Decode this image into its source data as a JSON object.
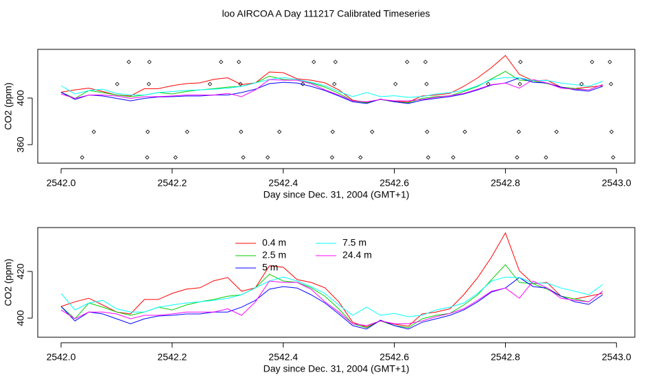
{
  "chart_data": [
    {
      "type": "line",
      "title": "loo AIRCOA A  Day 111217  Calibrated Timeseries",
      "xlabel": "Day since Dec. 31, 2004 (GMT+1)",
      "ylabel": "CO2 (ppm)",
      "xlim": [
        2541.958,
        2543.033
      ],
      "ylim": [
        344.1,
        441.8
      ],
      "xticks": [
        {
          "value": 2542,
          "label": "2542.0"
        },
        2542.2,
        2542.4,
        2542.6,
        2542.8,
        {
          "value": 2543,
          "label": "2543.0"
        }
      ],
      "yticks": [
        360,
        400
      ],
      "x": [
        2542.0,
        2542.025,
        2542.05,
        2542.075,
        2542.1,
        2542.125,
        2542.15,
        2542.175,
        2542.2,
        2542.225,
        2542.25,
        2542.275,
        2542.3,
        2542.325,
        2542.35,
        2542.375,
        2542.4,
        2542.425,
        2542.45,
        2542.475,
        2542.5,
        2542.525,
        2542.55,
        2542.575,
        2542.6,
        2542.625,
        2542.65,
        2542.675,
        2542.7,
        2542.725,
        2542.75,
        2542.775,
        2542.8,
        2542.825,
        2542.85,
        2542.875,
        2542.9,
        2542.925,
        2542.95,
        2542.975
      ],
      "series": [
        {
          "color": "#ff0000",
          "values": [
            405,
            407,
            408.5,
            405.6,
            402.6,
            401.8,
            408,
            408,
            410.6,
            412.4,
            413,
            416,
            417.4,
            411.5,
            413,
            422.4,
            421.8,
            416.5,
            415.3,
            413,
            407,
            398.2,
            396.2,
            398.8,
            397.4,
            396.5,
            401.8,
            402.6,
            404,
            410,
            417.4,
            426.2,
            436.5,
            420.3,
            414.7,
            415.3,
            409.4,
            408.2,
            409.4,
            410.6
          ]
        },
        {
          "color": "#00cd00",
          "values": [
            405,
            399.7,
            406.5,
            404.7,
            402.6,
            401.2,
            402.6,
            404.7,
            403.5,
            405.6,
            407,
            408,
            409.4,
            410,
            413,
            418.8,
            415.9,
            415.3,
            413,
            409.4,
            404,
            397.6,
            395.9,
            398.8,
            396.8,
            395.9,
            399.7,
            401.2,
            402,
            405.6,
            410,
            416.5,
            422.9,
            415.3,
            414.7,
            412.4,
            409.4,
            408.2,
            407,
            411.5
          ]
        },
        {
          "color": "#0000ff",
          "values": [
            405,
            398.8,
            402.6,
            401.8,
            399.7,
            397.6,
            399.7,
            400.9,
            401.2,
            401.8,
            401.8,
            402.6,
            402.6,
            404.7,
            407.6,
            412.4,
            413.5,
            412.9,
            410,
            406.5,
            401.8,
            396.8,
            395.3,
            399.1,
            396.8,
            395.3,
            398.2,
            399.7,
            401.2,
            403.5,
            407,
            411.2,
            412.9,
            417.4,
            413.5,
            412.9,
            409.4,
            407,
            405.9,
            410
          ]
        },
        {
          "color": "#00ffff",
          "values": [
            410.6,
            403.5,
            406.5,
            407.6,
            404,
            402.6,
            402.6,
            404.7,
            405.6,
            406.5,
            407,
            407.6,
            408.5,
            410,
            413,
            415.9,
            417.6,
            415.9,
            413.5,
            410.6,
            405.6,
            401.2,
            404.7,
            401.2,
            402,
            400.6,
            401.2,
            403.5,
            404.7,
            406.5,
            410.6,
            415.9,
            417.6,
            417.4,
            415,
            415,
            412.9,
            411.5,
            410,
            414.4
          ]
        },
        {
          "color": "#ff00ff",
          "values": [
            403.5,
            399.7,
            402.6,
            402.6,
            401.8,
            399.7,
            401.2,
            401.2,
            401.8,
            402.6,
            402.6,
            402.6,
            404,
            401.2,
            407,
            415.9,
            415.3,
            415.3,
            412.4,
            407,
            402.6,
            397.6,
            396.8,
            398.8,
            397.6,
            397.6,
            398.8,
            400.6,
            402,
            404,
            407.6,
            411.5,
            412.9,
            408.5,
            415.9,
            412.9,
            408.5,
            407.6,
            407,
            411.5
          ]
        }
      ],
      "markers": {
        "x": [
          2542.122,
          2542.159,
          2542.288,
          2542.32,
          2542.455,
          2542.494,
          2542.623,
          2542.656,
          2542.827,
          2542.956,
          2542.988,
          2542.101,
          2542.158,
          2542.268,
          2542.323,
          2542.435,
          2542.492,
          2542.602,
          2542.658,
          2542.769,
          2542.826,
          2542.937,
          2542.99,
          2542.059,
          2542.156,
          2542.227,
          2542.324,
          2542.393,
          2542.489,
          2542.56,
          2542.659,
          2542.727,
          2542.824,
          2542.892,
          2542.991,
          2542.038,
          2542.155,
          2542.206,
          2542.328,
          2542.372,
          2542.488,
          2542.539,
          2542.661,
          2542.706,
          2542.821,
          2542.873,
          2542.994
        ],
        "y": [
          431,
          431,
          431,
          431,
          431,
          431,
          431,
          431,
          431,
          431,
          431,
          412,
          412,
          412,
          412,
          412,
          412,
          412,
          412,
          412,
          412,
          412,
          412,
          371,
          371,
          371,
          371,
          371,
          371,
          371,
          371,
          371,
          371,
          371,
          371,
          349,
          349,
          349,
          349,
          349,
          349,
          349,
          349,
          349,
          349,
          349,
          349
        ]
      }
    },
    {
      "type": "line",
      "xlabel": "Day since Dec. 31, 2004 (GMT+1)",
      "ylabel": "CO2 (ppm)",
      "xlim": [
        2541.958,
        2543.033
      ],
      "ylim": [
        391.8,
        438.8
      ],
      "xticks": [
        {
          "value": 2542,
          "label": "2542.0"
        },
        2542.2,
        2542.4,
        2542.6,
        2542.8,
        {
          "value": 2543,
          "label": "2543.0"
        }
      ],
      "yticks": [
        400,
        420
      ],
      "legend": "top",
      "x": [
        2542.0,
        2542.025,
        2542.05,
        2542.075,
        2542.1,
        2542.125,
        2542.15,
        2542.175,
        2542.2,
        2542.225,
        2542.25,
        2542.275,
        2542.3,
        2542.325,
        2542.35,
        2542.375,
        2542.4,
        2542.425,
        2542.45,
        2542.475,
        2542.5,
        2542.525,
        2542.55,
        2542.575,
        2542.6,
        2542.625,
        2542.65,
        2542.675,
        2542.7,
        2542.725,
        2542.75,
        2542.775,
        2542.8,
        2542.825,
        2542.85,
        2542.875,
        2542.9,
        2542.925,
        2542.95,
        2542.975
      ],
      "series": [
        {
          "name": "0.4 m",
          "color": "#ff0000",
          "values": [
            405,
            407,
            408.5,
            405.6,
            402.6,
            401.8,
            408,
            408,
            410.6,
            412.4,
            413,
            416,
            417.4,
            411.5,
            413,
            422.4,
            421.8,
            416.5,
            415.3,
            413,
            407,
            398.2,
            396.2,
            398.8,
            397.4,
            396.5,
            401.8,
            402.6,
            404,
            410,
            417.4,
            426.2,
            436.5,
            420.3,
            414.7,
            415.3,
            409.4,
            408.2,
            409.4,
            410.6
          ]
        },
        {
          "name": "2.5 m",
          "color": "#00cd00",
          "values": [
            405,
            399.7,
            406.5,
            404.7,
            402.6,
            401.2,
            402.6,
            404.7,
            403.5,
            405.6,
            407,
            408,
            409.4,
            410,
            413,
            418.8,
            415.9,
            415.3,
            413,
            409.4,
            404,
            397.6,
            395.9,
            398.8,
            396.8,
            395.9,
            399.7,
            401.2,
            402,
            405.6,
            410,
            416.5,
            422.9,
            415.3,
            414.7,
            412.4,
            409.4,
            408.2,
            407,
            411.5
          ]
        },
        {
          "name": "5 m",
          "color": "#0000ff",
          "values": [
            405,
            398.8,
            402.6,
            401.8,
            399.7,
            397.6,
            399.7,
            400.9,
            401.2,
            401.8,
            401.8,
            402.6,
            402.6,
            404.7,
            407.6,
            412.4,
            413.5,
            412.9,
            410,
            406.5,
            401.8,
            396.8,
            395.3,
            399.1,
            396.8,
            395.3,
            398.2,
            399.7,
            401.2,
            403.5,
            407,
            411.2,
            412.9,
            417.4,
            413.5,
            412.9,
            409.4,
            407,
            405.9,
            410
          ]
        },
        {
          "name": "7.5 m",
          "color": "#00ffff",
          "values": [
            410.6,
            403.5,
            406.5,
            407.6,
            404,
            402.6,
            402.6,
            404.7,
            405.6,
            406.5,
            407,
            407.6,
            408.5,
            410,
            413,
            415.9,
            417.6,
            415.9,
            413.5,
            410.6,
            405.6,
            401.2,
            404.7,
            401.2,
            402,
            400.6,
            401.2,
            403.5,
            404.7,
            406.5,
            410.6,
            415.9,
            417.6,
            417.4,
            415,
            415,
            412.9,
            411.5,
            410,
            414.4
          ]
        },
        {
          "name": "24.4 m",
          "color": "#ff00ff",
          "values": [
            403.5,
            399.7,
            402.6,
            402.6,
            401.8,
            399.7,
            401.2,
            401.2,
            401.8,
            402.6,
            402.6,
            402.6,
            404,
            401.2,
            407,
            415.9,
            415.3,
            415.3,
            412.4,
            407,
            402.6,
            397.6,
            396.8,
            398.8,
            397.6,
            397.6,
            398.8,
            400.6,
            402,
            404,
            407.6,
            411.5,
            412.9,
            408.5,
            415.9,
            412.9,
            408.5,
            407.6,
            407,
            411.5
          ]
        }
      ]
    }
  ]
}
